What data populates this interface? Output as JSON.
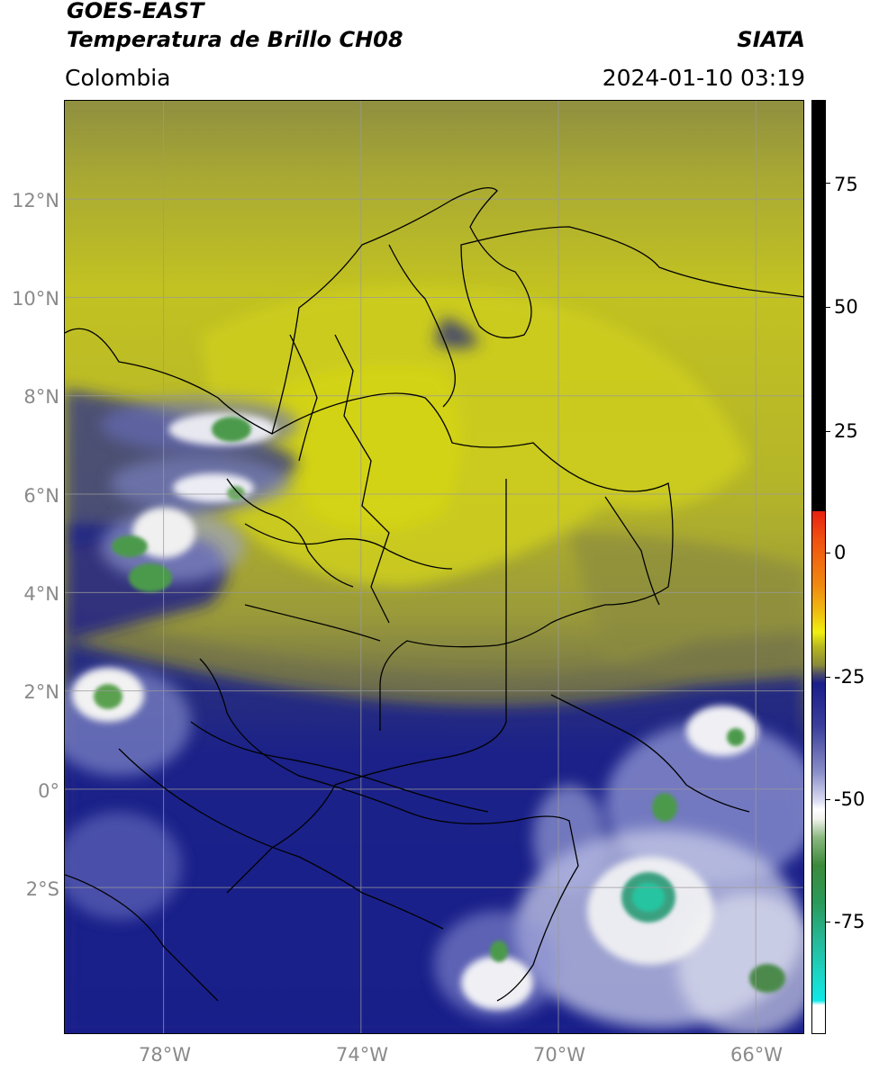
{
  "header": {
    "title_line1": "GOES-EAST",
    "title_line2": "Temperatura de Brillo CH08",
    "region": "Colombia",
    "organization": "SIATA",
    "timestamp": "2024-01-10 03:19"
  },
  "map": {
    "lon_range": [
      -80,
      -65
    ],
    "lat_range": [
      -5,
      14
    ],
    "lat_ticks": [
      {
        "value": 12,
        "label": "12°N"
      },
      {
        "value": 10,
        "label": "10°N"
      },
      {
        "value": 8,
        "label": "8°N"
      },
      {
        "value": 6,
        "label": "6°N"
      },
      {
        "value": 4,
        "label": "4°N"
      },
      {
        "value": 2,
        "label": "2°N"
      },
      {
        "value": 0,
        "label": "0°"
      },
      {
        "value": -2,
        "label": "2°S"
      }
    ],
    "lon_ticks": [
      {
        "value": -78,
        "label": "78°W"
      },
      {
        "value": -74,
        "label": "74°W"
      },
      {
        "value": -70,
        "label": "70°W"
      },
      {
        "value": -66,
        "label": "66°W"
      }
    ],
    "colors": {
      "yellow_warm": "#c8c81e",
      "olive": "#8e8e3a",
      "navy": "#1e2288",
      "white_cloud": "#f2f2f2",
      "green_cold": "#4c9a4c",
      "teal_coldest": "#26c4a0",
      "border_line": "#000000",
      "grid_line": "#9a9a9a"
    }
  },
  "colorbar": {
    "range": [
      -95,
      90
    ],
    "ticks": [
      {
        "value": 75,
        "label": "75"
      },
      {
        "value": 50,
        "label": "50"
      },
      {
        "value": 25,
        "label": "25"
      },
      {
        "value": 0,
        "label": "0"
      },
      {
        "value": -25,
        "label": "-25"
      },
      {
        "value": -50,
        "label": "-50"
      },
      {
        "value": -75,
        "label": "-75"
      }
    ]
  }
}
